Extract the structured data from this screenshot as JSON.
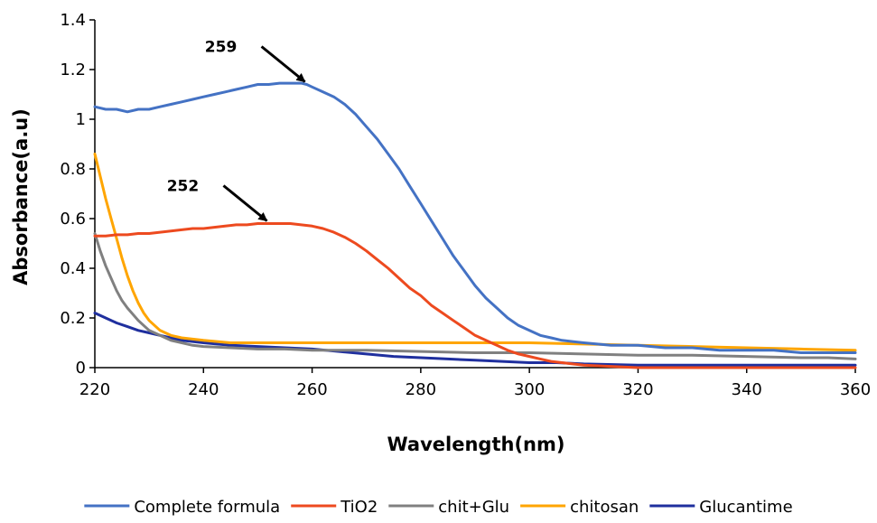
{
  "chart_data": {
    "type": "line",
    "title": "",
    "xlabel": "Wavelength(nm)",
    "ylabel": "Absorbance(a.u)",
    "xlim": [
      220,
      360
    ],
    "ylim": [
      0,
      1.4
    ],
    "xticks": [
      "220",
      "240",
      "260",
      "280",
      "300",
      "320",
      "340",
      "360"
    ],
    "yticks": [
      "0",
      "0.2",
      "0.4",
      "0.6",
      "0.8",
      "1",
      "1.2",
      "1.4"
    ],
    "grid": false,
    "legend_position": "bottom",
    "series": [
      {
        "name": "Complete formula",
        "color": "#4472C4",
        "points": [
          [
            220,
            1.05
          ],
          [
            222,
            1.04
          ],
          [
            224,
            1.04
          ],
          [
            226,
            1.03
          ],
          [
            228,
            1.04
          ],
          [
            230,
            1.04
          ],
          [
            232,
            1.05
          ],
          [
            234,
            1.06
          ],
          [
            236,
            1.07
          ],
          [
            238,
            1.08
          ],
          [
            240,
            1.09
          ],
          [
            242,
            1.1
          ],
          [
            244,
            1.11
          ],
          [
            246,
            1.12
          ],
          [
            248,
            1.13
          ],
          [
            250,
            1.14
          ],
          [
            252,
            1.14
          ],
          [
            254,
            1.145
          ],
          [
            256,
            1.145
          ],
          [
            258,
            1.145
          ],
          [
            259,
            1.14
          ],
          [
            260,
            1.13
          ],
          [
            262,
            1.11
          ],
          [
            264,
            1.09
          ],
          [
            266,
            1.06
          ],
          [
            268,
            1.02
          ],
          [
            270,
            0.97
          ],
          [
            272,
            0.92
          ],
          [
            274,
            0.86
          ],
          [
            276,
            0.8
          ],
          [
            278,
            0.73
          ],
          [
            280,
            0.66
          ],
          [
            282,
            0.59
          ],
          [
            284,
            0.52
          ],
          [
            286,
            0.45
          ],
          [
            288,
            0.39
          ],
          [
            290,
            0.33
          ],
          [
            292,
            0.28
          ],
          [
            294,
            0.24
          ],
          [
            296,
            0.2
          ],
          [
            298,
            0.17
          ],
          [
            300,
            0.15
          ],
          [
            302,
            0.13
          ],
          [
            304,
            0.12
          ],
          [
            306,
            0.11
          ],
          [
            310,
            0.1
          ],
          [
            315,
            0.09
          ],
          [
            320,
            0.09
          ],
          [
            325,
            0.08
          ],
          [
            330,
            0.08
          ],
          [
            335,
            0.07
          ],
          [
            340,
            0.07
          ],
          [
            345,
            0.07
          ],
          [
            350,
            0.06
          ],
          [
            355,
            0.06
          ],
          [
            360,
            0.06
          ]
        ]
      },
      {
        "name": "TiO2",
        "color": "#ED4A1F",
        "points": [
          [
            220,
            0.53
          ],
          [
            222,
            0.53
          ],
          [
            224,
            0.535
          ],
          [
            226,
            0.535
          ],
          [
            228,
            0.54
          ],
          [
            230,
            0.54
          ],
          [
            232,
            0.545
          ],
          [
            234,
            0.55
          ],
          [
            236,
            0.555
          ],
          [
            238,
            0.56
          ],
          [
            240,
            0.56
          ],
          [
            242,
            0.565
          ],
          [
            244,
            0.57
          ],
          [
            246,
            0.575
          ],
          [
            248,
            0.575
          ],
          [
            250,
            0.58
          ],
          [
            252,
            0.58
          ],
          [
            254,
            0.58
          ],
          [
            256,
            0.58
          ],
          [
            258,
            0.575
          ],
          [
            260,
            0.57
          ],
          [
            262,
            0.56
          ],
          [
            264,
            0.545
          ],
          [
            266,
            0.525
          ],
          [
            268,
            0.5
          ],
          [
            270,
            0.47
          ],
          [
            272,
            0.435
          ],
          [
            274,
            0.4
          ],
          [
            276,
            0.36
          ],
          [
            278,
            0.32
          ],
          [
            280,
            0.29
          ],
          [
            282,
            0.25
          ],
          [
            284,
            0.22
          ],
          [
            286,
            0.19
          ],
          [
            288,
            0.16
          ],
          [
            290,
            0.13
          ],
          [
            292,
            0.11
          ],
          [
            294,
            0.09
          ],
          [
            296,
            0.07
          ],
          [
            298,
            0.055
          ],
          [
            300,
            0.045
          ],
          [
            302,
            0.035
          ],
          [
            304,
            0.025
          ],
          [
            306,
            0.02
          ],
          [
            310,
            0.01
          ],
          [
            315,
            0.005
          ],
          [
            320,
            0.0
          ],
          [
            330,
            0.0
          ],
          [
            340,
            0.0
          ],
          [
            350,
            0.0
          ],
          [
            360,
            0.0
          ]
        ]
      },
      {
        "name": "chit+Glu",
        "color": "#808080",
        "points": [
          [
            220,
            0.54
          ],
          [
            221,
            0.47
          ],
          [
            222,
            0.41
          ],
          [
            223,
            0.36
          ],
          [
            224,
            0.31
          ],
          [
            225,
            0.27
          ],
          [
            226,
            0.24
          ],
          [
            228,
            0.19
          ],
          [
            230,
            0.15
          ],
          [
            232,
            0.13
          ],
          [
            234,
            0.11
          ],
          [
            236,
            0.1
          ],
          [
            238,
            0.09
          ],
          [
            240,
            0.085
          ],
          [
            245,
            0.08
          ],
          [
            250,
            0.075
          ],
          [
            255,
            0.075
          ],
          [
            260,
            0.07
          ],
          [
            270,
            0.07
          ],
          [
            280,
            0.065
          ],
          [
            290,
            0.06
          ],
          [
            300,
            0.06
          ],
          [
            310,
            0.055
          ],
          [
            320,
            0.05
          ],
          [
            330,
            0.05
          ],
          [
            340,
            0.045
          ],
          [
            350,
            0.04
          ],
          [
            355,
            0.04
          ],
          [
            360,
            0.035
          ]
        ]
      },
      {
        "name": "chitosan",
        "color": "#FFA500",
        "points": [
          [
            220,
            0.86
          ],
          [
            221,
            0.77
          ],
          [
            222,
            0.68
          ],
          [
            223,
            0.6
          ],
          [
            224,
            0.52
          ],
          [
            225,
            0.44
          ],
          [
            226,
            0.37
          ],
          [
            227,
            0.31
          ],
          [
            228,
            0.26
          ],
          [
            229,
            0.22
          ],
          [
            230,
            0.19
          ],
          [
            232,
            0.15
          ],
          [
            234,
            0.13
          ],
          [
            236,
            0.12
          ],
          [
            238,
            0.115
          ],
          [
            240,
            0.11
          ],
          [
            245,
            0.1
          ],
          [
            250,
            0.1
          ],
          [
            260,
            0.1
          ],
          [
            270,
            0.1
          ],
          [
            280,
            0.1
          ],
          [
            290,
            0.1
          ],
          [
            300,
            0.1
          ],
          [
            310,
            0.095
          ],
          [
            320,
            0.09
          ],
          [
            330,
            0.085
          ],
          [
            340,
            0.08
          ],
          [
            350,
            0.075
          ],
          [
            360,
            0.07
          ]
        ]
      },
      {
        "name": "Glucantime",
        "color": "#1F2F9E",
        "points": [
          [
            220,
            0.22
          ],
          [
            222,
            0.2
          ],
          [
            224,
            0.18
          ],
          [
            226,
            0.165
          ],
          [
            228,
            0.15
          ],
          [
            230,
            0.14
          ],
          [
            232,
            0.13
          ],
          [
            234,
            0.12
          ],
          [
            236,
            0.11
          ],
          [
            238,
            0.105
          ],
          [
            240,
            0.1
          ],
          [
            245,
            0.09
          ],
          [
            250,
            0.085
          ],
          [
            255,
            0.08
          ],
          [
            260,
            0.075
          ],
          [
            265,
            0.065
          ],
          [
            270,
            0.055
          ],
          [
            275,
            0.045
          ],
          [
            280,
            0.04
          ],
          [
            285,
            0.035
          ],
          [
            290,
            0.03
          ],
          [
            295,
            0.025
          ],
          [
            300,
            0.02
          ],
          [
            305,
            0.02
          ],
          [
            310,
            0.015
          ],
          [
            320,
            0.01
          ],
          [
            330,
            0.01
          ],
          [
            340,
            0.01
          ],
          [
            350,
            0.01
          ],
          [
            360,
            0.01
          ]
        ]
      }
    ],
    "annotations": [
      {
        "text": "259",
        "x": 259,
        "y": 1.14
      },
      {
        "text": "252",
        "x": 252,
        "y": 0.58
      }
    ]
  }
}
